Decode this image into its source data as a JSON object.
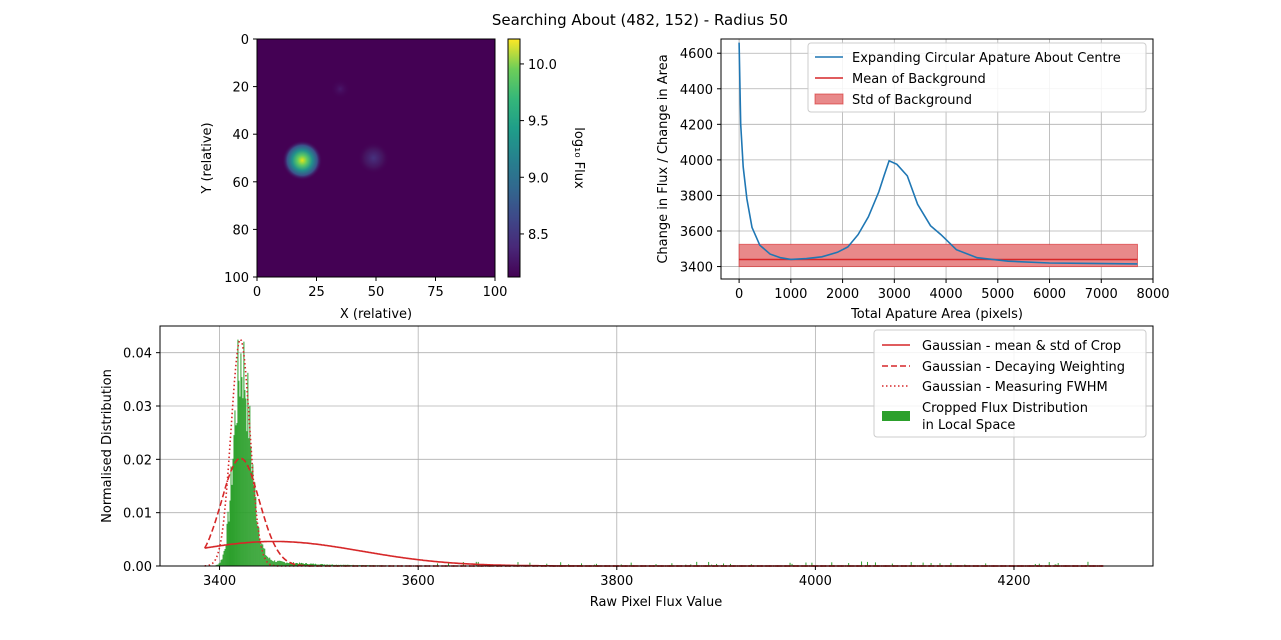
{
  "figure": {
    "title": "Searching About (482, 152) - Radius 50"
  },
  "chart_data": [
    {
      "type": "heatmap",
      "title": "",
      "xlabel": "X (relative)",
      "ylabel": "Y (relative)",
      "xlim": [
        0,
        100
      ],
      "ylim": [
        100,
        0
      ],
      "x_ticks": [
        "0",
        "25",
        "50",
        "75",
        "100"
      ],
      "y_ticks": [
        "0",
        "20",
        "40",
        "60",
        "80",
        "100"
      ],
      "colormap": "viridis",
      "sources": [
        {
          "x": 19,
          "y": 51,
          "peak_log_flux": 10.2
        },
        {
          "x": 49,
          "y": 50,
          "peak_log_flux": 8.55
        },
        {
          "x": 35,
          "y": 21,
          "peak_log_flux": 8.3
        }
      ],
      "background_log_flux": 8.12,
      "colorbar": {
        "label": "log₁₀ Flux",
        "range": [
          8.12,
          10.22
        ],
        "ticks": [
          "8.5",
          "9.0",
          "9.5",
          "10.0"
        ]
      }
    },
    {
      "type": "line",
      "title": "",
      "xlabel": "Total Apature Area (pixels)",
      "ylabel": "Change in Flux / Change in Area",
      "xlim": [
        -350,
        8000
      ],
      "ylim": [
        3330,
        4680
      ],
      "x_ticks": [
        "0",
        "1000",
        "2000",
        "3000",
        "4000",
        "5000",
        "6000",
        "7000",
        "8000"
      ],
      "y_ticks": [
        "3400",
        "3600",
        "3800",
        "4000",
        "4200",
        "4400",
        "4600"
      ],
      "grid": true,
      "legend_position": "top-right",
      "series": [
        {
          "name": "Expanding Circular Apature About Centre",
          "color": "#1f77b4",
          "x": [
            0,
            30,
            80,
            150,
            250,
            400,
            600,
            800,
            1000,
            1300,
            1600,
            1900,
            2100,
            2300,
            2500,
            2700,
            2800,
            2900,
            3050,
            3250,
            3450,
            3700,
            3900,
            4200,
            4600,
            5200,
            6000,
            6800,
            7700
          ],
          "y": [
            4660,
            4200,
            3960,
            3780,
            3620,
            3520,
            3470,
            3450,
            3440,
            3445,
            3455,
            3480,
            3510,
            3580,
            3680,
            3820,
            3910,
            3995,
            3975,
            3910,
            3750,
            3630,
            3580,
            3495,
            3450,
            3430,
            3420,
            3418,
            3415
          ]
        },
        {
          "name": "Mean of Background",
          "color": "#d62728",
          "y": 3440,
          "x_range": [
            0,
            7700
          ]
        },
        {
          "name": "Std of Background",
          "color": "#e8898a",
          "y_range": [
            3400,
            3525
          ],
          "x_range": [
            0,
            7700
          ]
        }
      ]
    },
    {
      "type": "bar",
      "title": "",
      "xlabel": "Raw Pixel Flux Value",
      "ylabel": "Normalised Distribution",
      "xlim": [
        3340,
        4340
      ],
      "ylim": [
        0,
        0.045
      ],
      "x_ticks": [
        "3400",
        "3600",
        "3800",
        "4000",
        "4200"
      ],
      "y_ticks": [
        "0.00",
        "0.01",
        "0.02",
        "0.03",
        "0.04"
      ],
      "grid": true,
      "legend_position": "top-right",
      "series": [
        {
          "name": "Gaussian - mean & std of Crop",
          "color": "#d62728",
          "style": "solid",
          "mean": 3455,
          "std": 88,
          "amplitude": 0.0046
        },
        {
          "name": "Gaussian - Decaying Weighting",
          "color": "#d62728",
          "style": "dashed",
          "mean": 3421,
          "std": 19,
          "amplitude": 0.0202
        },
        {
          "name": "Gaussian - Measuring FWHM",
          "color": "#d62728",
          "style": "dotted",
          "mean": 3421,
          "std": 9.4,
          "amplitude": 0.0425
        },
        {
          "name": "Cropped Flux Distribution\nin Local Space",
          "color": "#2ca02c",
          "style": "histogram",
          "peak_value": 3421,
          "peak_density": 0.037,
          "range": [
            3385,
            4290
          ]
        }
      ],
      "curve_range": [
        3385,
        4290
      ]
    }
  ]
}
